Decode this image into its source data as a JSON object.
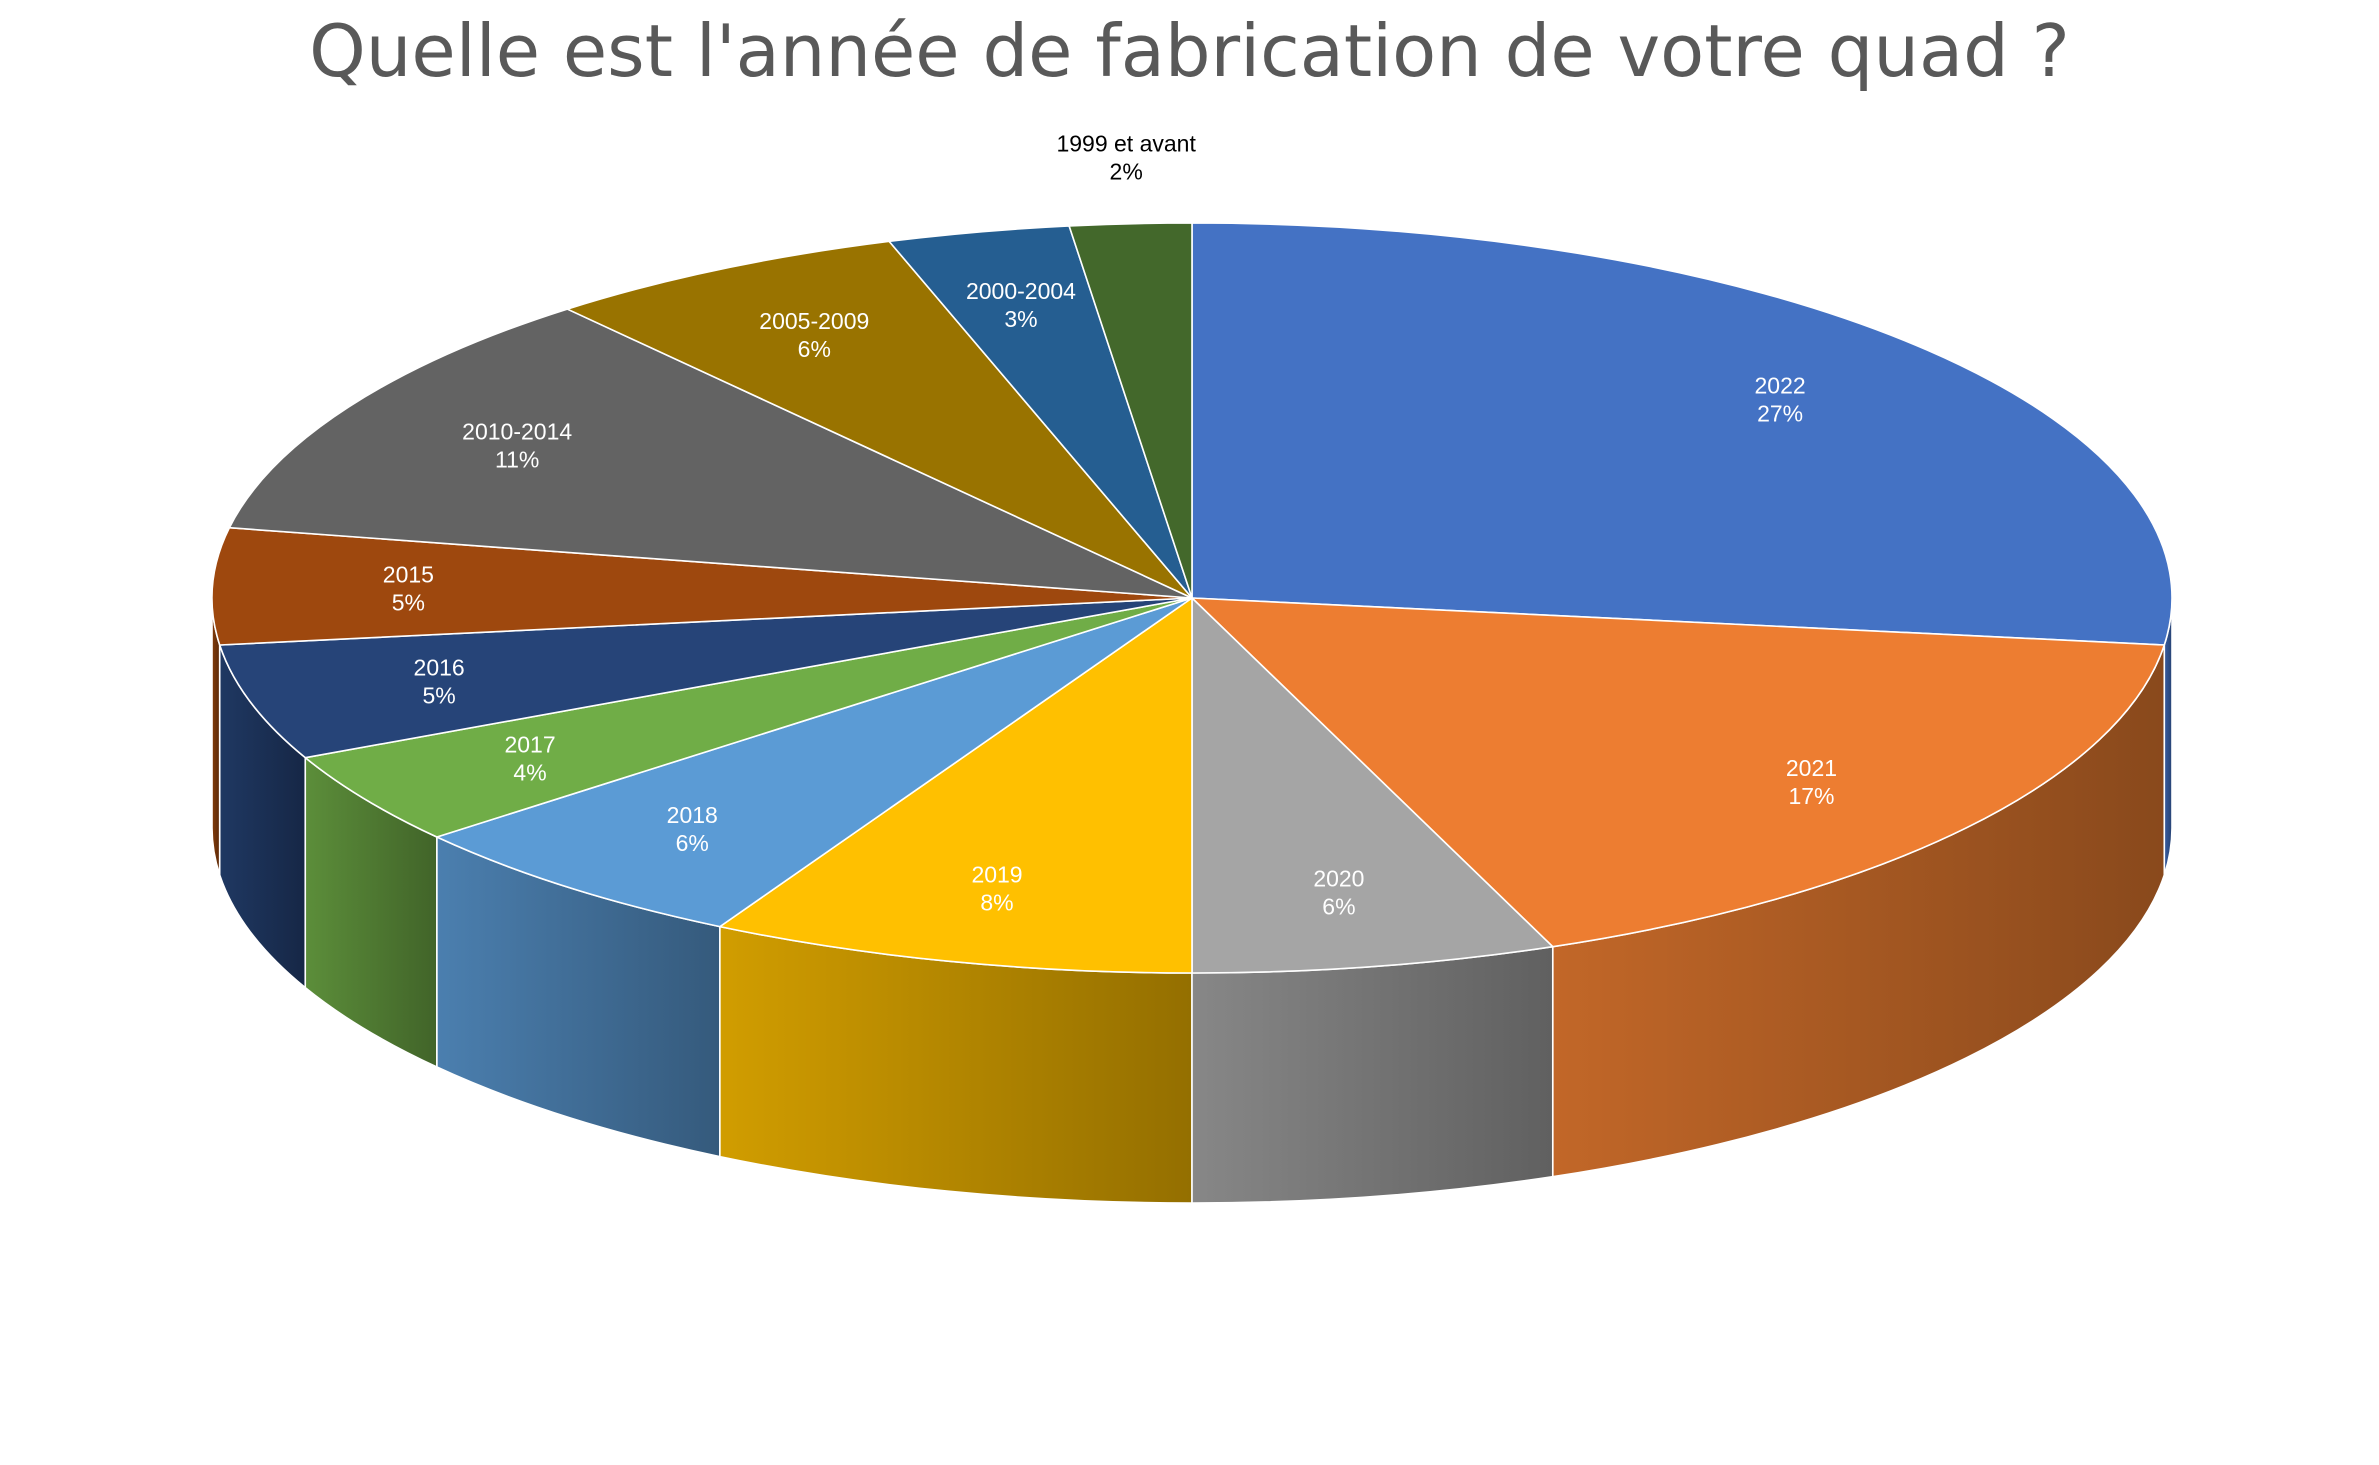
{
  "chart_data": {
    "type": "pie",
    "title": "Quelle est l'année de fabrication de votre quad ?",
    "slices": [
      {
        "label": "2022",
        "percent_label": "27%",
        "value": 27,
        "color": "#4472C4",
        "label_color": "#ffffff"
      },
      {
        "label": "2021",
        "percent_label": "17%",
        "value": 17,
        "color": "#ED7D31",
        "label_color": "#ffffff"
      },
      {
        "label": "2020",
        "percent_label": "6%",
        "value": 6,
        "color": "#A5A5A5",
        "label_color": "#ffffff"
      },
      {
        "label": "2019",
        "percent_label": "8%",
        "value": 8,
        "color": "#FFC000",
        "label_color": "#ffffff"
      },
      {
        "label": "2018",
        "percent_label": "6%",
        "value": 6,
        "color": "#5B9BD5",
        "label_color": "#ffffff"
      },
      {
        "label": "2017",
        "percent_label": "4%",
        "value": 4,
        "color": "#70AD47",
        "label_color": "#ffffff"
      },
      {
        "label": "2016",
        "percent_label": "5%",
        "value": 5,
        "color": "#264478",
        "label_color": "#ffffff"
      },
      {
        "label": "2015",
        "percent_label": "5%",
        "value": 5,
        "color": "#9E480E",
        "label_color": "#ffffff"
      },
      {
        "label": "2010-2014",
        "percent_label": "11%",
        "value": 11,
        "color": "#636363",
        "label_color": "#ffffff"
      },
      {
        "label": "2005-2009",
        "percent_label": "6%",
        "value": 6,
        "color": "#997300",
        "label_color": "#ffffff"
      },
      {
        "label": "2000-2004",
        "percent_label": "3%",
        "value": 3,
        "color": "#255E91",
        "label_color": "#ffffff"
      },
      {
        "label": "1999 et avant",
        "percent_label": "2%",
        "value": 2,
        "color": "#43682B",
        "label_color": "#000000"
      }
    ]
  }
}
